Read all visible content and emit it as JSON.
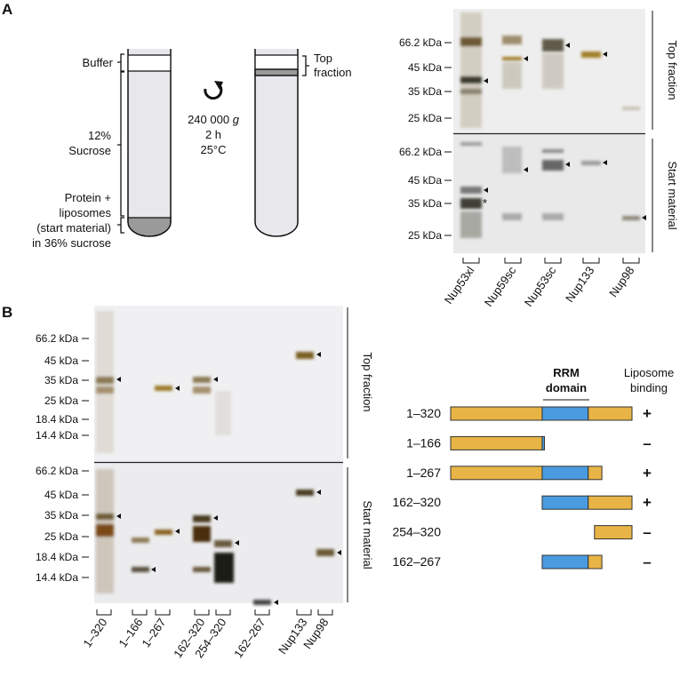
{
  "panel_a": {
    "label": "A",
    "tube": {
      "buffer": "Buffer",
      "sucrose_line1": "12%",
      "sucrose_line2": "Sucrose",
      "start_line1": "Protein +",
      "start_line2": "liposomes",
      "start_line3": "(start material)",
      "start_line4": "in 36% sucrose",
      "spin_speed": "240 000",
      "spin_unit": "g",
      "spin_time": "2 h",
      "spin_temp": "25°C",
      "top_fraction_line1": "Top",
      "top_fraction_line2": "fraction",
      "rotate_icon": "clockwise-arrow-icon"
    },
    "gel": {
      "markers_top": [
        "66.2 kDa",
        "45 kDa",
        "35 kDa",
        "25 kDa"
      ],
      "markers_bottom": [
        "66.2 kDa",
        "45 kDa",
        "35 kDa",
        "25 kDa"
      ],
      "section_top": "Top fraction",
      "section_bottom": "Start material",
      "asterisk": "*",
      "lanes": [
        "Nup53xl",
        "Nup59sc",
        "Nup53sc",
        "Nup133",
        "Nup98"
      ]
    }
  },
  "panel_b": {
    "label": "B",
    "gel": {
      "markers_top": [
        "66.2 kDa",
        "45 kDa",
        "35 kDa",
        "25 kDa",
        "18.4 kDa",
        "14.4 kDa"
      ],
      "markers_bottom": [
        "66.2 kDa",
        "45 kDa",
        "35 kDa",
        "25 kDa",
        "18.4 kDa",
        "14.4 kDa"
      ],
      "section_top": "Top fraction",
      "section_bottom": "Start material",
      "lanes": [
        "1–320",
        "1–166",
        "1–267",
        "162–320",
        "254–320",
        "162–267",
        "Nup133",
        "Nup98"
      ]
    },
    "domains": {
      "rrm_line1": "RRM",
      "rrm_line2": "domain",
      "binding_line1": "Liposome",
      "binding_line2": "binding",
      "full_length": 320,
      "rrm_range": [
        162,
        243
      ],
      "colors": {
        "other": "#E8B445",
        "rrm": "#4A9BE0"
      },
      "constructs": [
        {
          "label": "1–320",
          "start": 1,
          "end": 320,
          "binding": "+"
        },
        {
          "label": "1–166",
          "start": 1,
          "end": 166,
          "binding": "–"
        },
        {
          "label": "1–267",
          "start": 1,
          "end": 267,
          "binding": "+"
        },
        {
          "label": "162–320",
          "start": 162,
          "end": 320,
          "binding": "+"
        },
        {
          "label": "254–320",
          "start": 254,
          "end": 320,
          "binding": "–"
        },
        {
          "label": "162–267",
          "start": 162,
          "end": 267,
          "binding": "–"
        }
      ]
    }
  }
}
